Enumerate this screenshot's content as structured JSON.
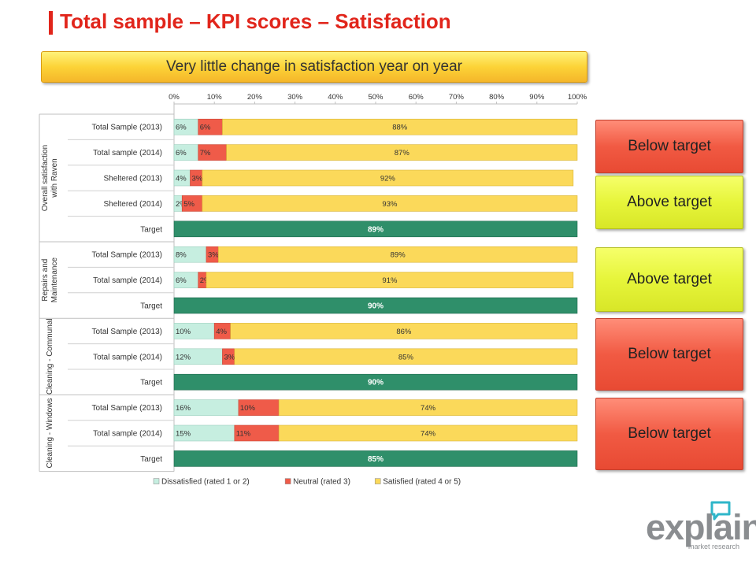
{
  "page": {
    "title": "Total sample – KPI scores – Satisfaction",
    "banner": "Very little change in satisfaction year on year",
    "logo": {
      "name": "explain",
      "sub": "market research",
      "icon": "speech-bubble-icon"
    }
  },
  "colors": {
    "accent": "#e1251b",
    "dissatisfied": "#c6eee0",
    "neutral": "#ef5b49",
    "satisfied": "#fbd95a",
    "target": "#2f8f6a"
  },
  "targets": [
    {
      "label": "Below target",
      "status": "below"
    },
    {
      "label": "Above target",
      "status": "above"
    },
    {
      "label": "Above target",
      "status": "above"
    },
    {
      "label": "Below target",
      "status": "below"
    },
    {
      "label": "Below target",
      "status": "below"
    }
  ],
  "chart_data": {
    "type": "bar",
    "orientation": "horizontal",
    "stacked": true,
    "xlim": [
      0,
      100
    ],
    "x_ticks": [
      "0%",
      "10%",
      "20%",
      "30%",
      "40%",
      "50%",
      "60%",
      "70%",
      "80%",
      "90%",
      "100%"
    ],
    "legend": {
      "position": "bottom",
      "entries": [
        "Dissatisfied (rated 1 or 2)",
        "Neutral (rated 3)",
        "Satisfied (rated 4 or 5)"
      ]
    },
    "groups": [
      {
        "name": "Overall satisfaction with Raven",
        "rows": [
          {
            "label": "Total Sample (2013)",
            "values": [
              6,
              6,
              88
            ],
            "labels": [
              "6%",
              "6%",
              "88%"
            ]
          },
          {
            "label": "Total sample (2014)",
            "values": [
              6,
              7,
              87
            ],
            "labels": [
              "6%",
              "7%",
              "87%"
            ]
          },
          {
            "label": "Sheltered (2013)",
            "values": [
              4,
              3,
              92
            ],
            "labels": [
              "4%",
              "3%",
              "92%"
            ]
          },
          {
            "label": "Sheltered (2014)",
            "values": [
              2,
              5,
              93
            ],
            "labels": [
              "2%",
              "5%",
              "93%"
            ]
          },
          {
            "label": "Target",
            "target": 89,
            "target_label": "89%"
          }
        ]
      },
      {
        "name": "Repairs and Maintenance",
        "rows": [
          {
            "label": "Total Sample (2013)",
            "values": [
              8,
              3,
              89
            ],
            "labels": [
              "8%",
              "3%",
              "89%"
            ]
          },
          {
            "label": "Total sample (2014)",
            "values": [
              6,
              2,
              91
            ],
            "labels": [
              "6%",
              "2%",
              "91%"
            ]
          },
          {
            "label": "Target",
            "target": 90,
            "target_label": "90%"
          }
        ]
      },
      {
        "name": "Cleaning - Communal",
        "rows": [
          {
            "label": "Total Sample (2013)",
            "values": [
              10,
              4,
              86
            ],
            "labels": [
              "10%",
              "4%",
              "86%"
            ]
          },
          {
            "label": "Total sample (2014)",
            "values": [
              12,
              3,
              85
            ],
            "labels": [
              "12%",
              "3%",
              "85%"
            ]
          },
          {
            "label": "Target",
            "target": 90,
            "target_label": "90%"
          }
        ]
      },
      {
        "name": "Cleaning - Windows",
        "rows": [
          {
            "label": "Total Sample (2013)",
            "values": [
              16,
              10,
              74
            ],
            "labels": [
              "16%",
              "10%",
              "74%"
            ]
          },
          {
            "label": "Total sample (2014)",
            "values": [
              15,
              11,
              74
            ],
            "labels": [
              "15%",
              "11%",
              "74%"
            ]
          },
          {
            "label": "Target",
            "target": 85,
            "target_label": "85%"
          }
        ]
      }
    ]
  }
}
